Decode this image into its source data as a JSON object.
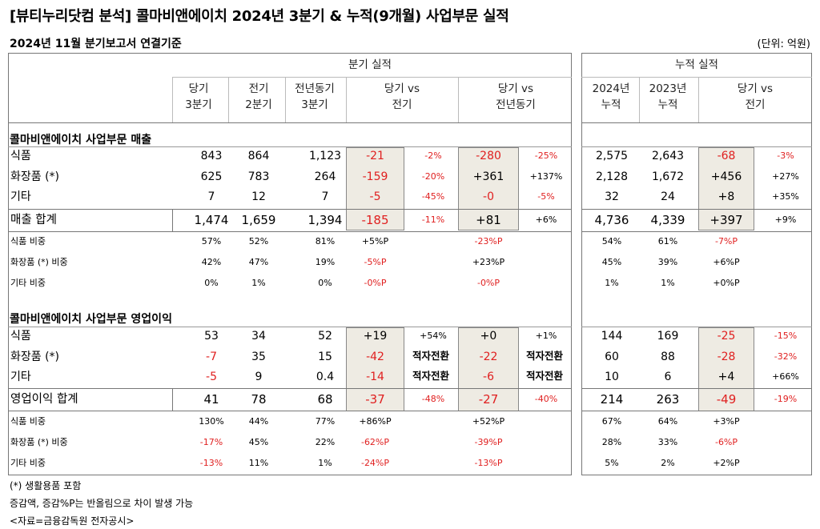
{
  "title": "[뷰티누리닷컴 분석] 콜마비앤에이치 2024년 3분기 & 누적(9개월) 사업부문 실적",
  "subtitle": "2024년 11월 분기보고서 연결기준",
  "unit": "(단위: 억원)",
  "headers": {
    "quarterly_group": "분기 실적",
    "cumulative_group": "누적 실적",
    "q_curr": [
      "당기",
      "3분기"
    ],
    "q_prev": [
      "전기",
      "2분기"
    ],
    "q_yoy": [
      "전년동기",
      "3분기"
    ],
    "q_vs_prev": [
      "당기 vs",
      "전기"
    ],
    "q_vs_yoy": [
      "당기 vs",
      "전년동기"
    ],
    "c_2024": [
      "2024년",
      "누적"
    ],
    "c_2023": [
      "2023년",
      "누적"
    ],
    "c_vs": [
      "당기 vs",
      "전기"
    ]
  },
  "sections": {
    "sales": "콜마비앤에이치 사업부문 매출",
    "op": "콜마비앤에이치 사업부문 영업이익"
  },
  "rows": [
    {
      "id": "s1",
      "label": "식품",
      "q": [
        "843",
        "864",
        "1,123"
      ],
      "d1": "-21",
      "p1": "-2%",
      "d2": "-280",
      "p2": "-25%",
      "cu": [
        "2,575",
        "2,643"
      ],
      "d3": "-68",
      "p3": "-3%"
    },
    {
      "id": "s2",
      "label": "화장품 (*)",
      "q": [
        "625",
        "783",
        "264"
      ],
      "d1": "-159",
      "p1": "-20%",
      "d2": "+361",
      "p2": "+137%",
      "cu": [
        "2,128",
        "1,672"
      ],
      "d3": "+456",
      "p3": "+27%"
    },
    {
      "id": "s3",
      "label": "기타",
      "q": [
        "7",
        "12",
        "7"
      ],
      "d1": "-5",
      "p1": "-45%",
      "d2": "-0",
      "p2": "-5%",
      "cu": [
        "32",
        "24"
      ],
      "d3": "+8",
      "p3": "+35%"
    },
    {
      "id": "s4",
      "label": "매출 합계",
      "q": [
        "1,474",
        "1,659",
        "1,394"
      ],
      "d1": "-185",
      "p1": "-11%",
      "d2": "+81",
      "p2": "+6%",
      "cu": [
        "4,736",
        "4,339"
      ],
      "d3": "+397",
      "p3": "+9%"
    },
    {
      "id": "s5",
      "label": "식품 비중",
      "q": [
        "57%",
        "52%",
        "81%"
      ],
      "d1": "+5%P",
      "d2": "-23%P",
      "cu": [
        "54%",
        "61%"
      ],
      "d3": "-7%P"
    },
    {
      "id": "s6",
      "label": "화장품 (*) 비중",
      "q": [
        "42%",
        "47%",
        "19%"
      ],
      "d1": "-5%P",
      "d2": "+23%P",
      "cu": [
        "45%",
        "39%"
      ],
      "d3": "+6%P"
    },
    {
      "id": "s7",
      "label": "기타 비중",
      "q": [
        "0%",
        "1%",
        "0%"
      ],
      "d1": "-0%P",
      "d2": "-0%P",
      "cu": [
        "1%",
        "1%"
      ],
      "d3": "+0%P"
    },
    {
      "id": "o1",
      "label": "식품",
      "q": [
        "53",
        "34",
        "52"
      ],
      "d1": "+19",
      "p1": "+54%",
      "d2": "+0",
      "p2": "+1%",
      "cu": [
        "144",
        "169"
      ],
      "d3": "-25",
      "p3": "-15%"
    },
    {
      "id": "o2",
      "label": "화장품 (*)",
      "q": [
        "-7",
        "35",
        "15"
      ],
      "d1": "-42",
      "p1": "적자전환",
      "d2": "-22",
      "p2": "적자전환",
      "cu": [
        "60",
        "88"
      ],
      "d3": "-28",
      "p3": "-32%"
    },
    {
      "id": "o3",
      "label": "기타",
      "q": [
        "-5",
        "9",
        "0.4"
      ],
      "d1": "-14",
      "p1": "적자전환",
      "d2": "-6",
      "p2": "적자전환",
      "cu": [
        "10",
        "6"
      ],
      "d3": "+4",
      "p3": "+66%"
    },
    {
      "id": "o4",
      "label": "영업이익 합계",
      "q": [
        "41",
        "78",
        "68"
      ],
      "d1": "-37",
      "p1": "-48%",
      "d2": "-27",
      "p2": "-40%",
      "cu": [
        "214",
        "263"
      ],
      "d3": "-49",
      "p3": "-19%"
    },
    {
      "id": "o5",
      "label": "식품 비중",
      "q": [
        "130%",
        "44%",
        "77%"
      ],
      "d1": "+86%P",
      "d2": "+52%P",
      "cu": [
        "67%",
        "64%"
      ],
      "d3": "+3%P"
    },
    {
      "id": "o6",
      "label": "화장품 (*) 비중",
      "q": [
        "-17%",
        "45%",
        "22%"
      ],
      "d1": "-62%P",
      "d2": "-39%P",
      "cu": [
        "28%",
        "33%"
      ],
      "d3": "-6%P"
    },
    {
      "id": "o7",
      "label": "기타 비중",
      "q": [
        "-13%",
        "11%",
        "1%"
      ],
      "d1": "-24%P",
      "d2": "-13%P",
      "cu": [
        "5%",
        "2%"
      ],
      "d3": "+2%P"
    }
  ],
  "notes": [
    "(*) 생활용품 포함",
    "증감액, 증감%P는 반올림으로 차이 발생 가능",
    "<자료=금융감독원 전자공시>"
  ],
  "colors": {
    "negative": "#e02020",
    "shade": "#eeebe3",
    "border": "#777777"
  }
}
